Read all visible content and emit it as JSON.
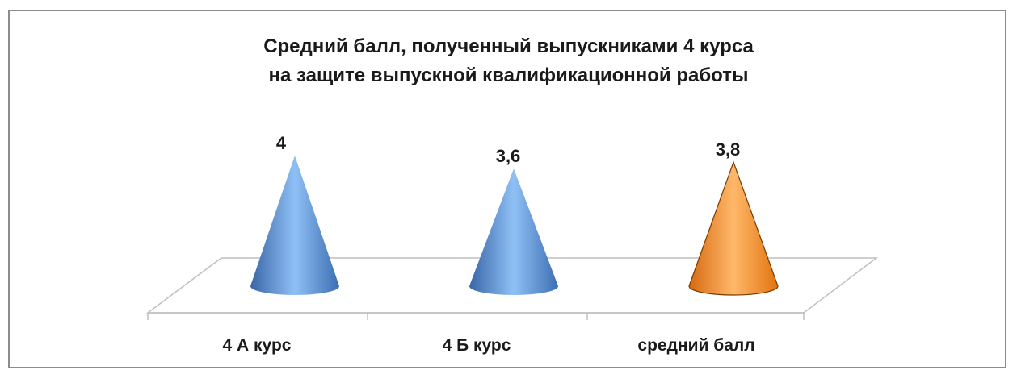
{
  "chart_data": {
    "type": "bar",
    "title_lines": [
      "Средний балл, полученный выпускниками 4 курса",
      "на защите выпускной квалификационной работы"
    ],
    "categories": [
      "4 А курс",
      "4 Б курс",
      "средний балл"
    ],
    "values": [
      4,
      3.6,
      3.8
    ],
    "value_labels": [
      "4",
      "3,6",
      "3,8"
    ],
    "bar_shape": "cone",
    "colors": [
      "#4f81bd",
      "#4f81bd",
      "#f79646"
    ],
    "grid": false,
    "legend": "none"
  }
}
